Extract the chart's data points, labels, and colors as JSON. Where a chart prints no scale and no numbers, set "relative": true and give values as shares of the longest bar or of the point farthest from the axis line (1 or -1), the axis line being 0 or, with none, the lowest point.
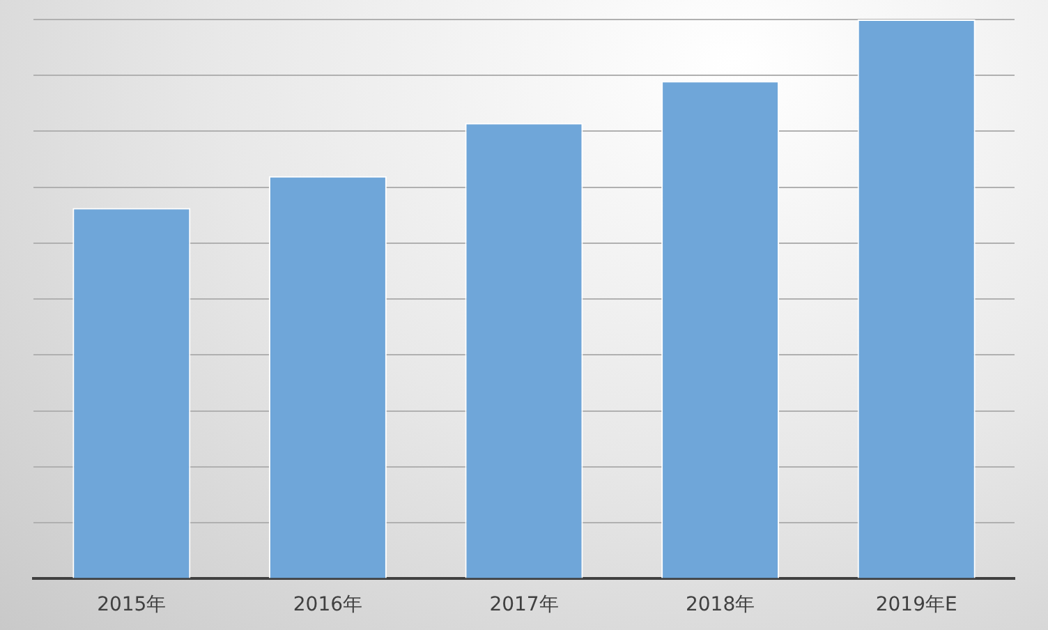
{
  "chart_data": {
    "type": "bar",
    "relative": true,
    "categories": [
      "2015年",
      "2016年",
      "2017年",
      "2018年",
      "2019年E"
    ],
    "values": [
      0.663,
      0.72,
      0.815,
      0.89,
      1
    ],
    "color": "#6fa6d9",
    "grid": true,
    "legend": false
  }
}
